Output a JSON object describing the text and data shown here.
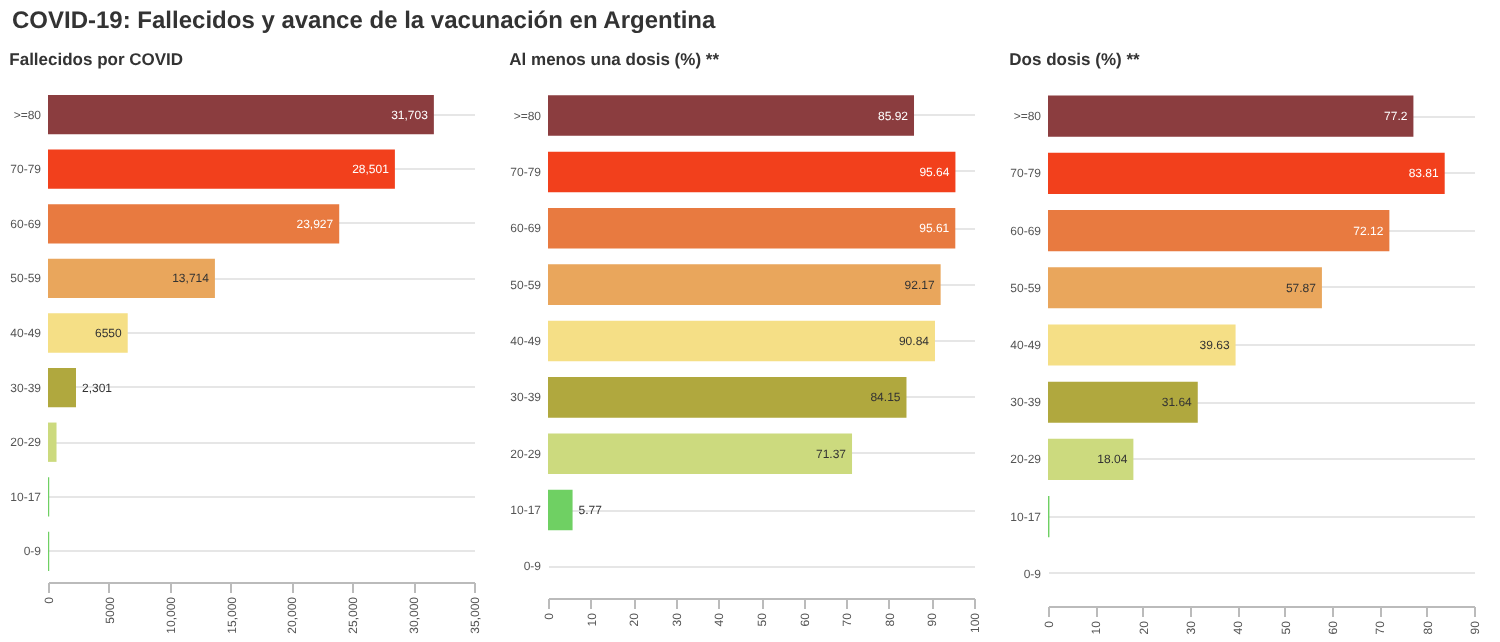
{
  "chart_data": [
    {
      "type": "bar",
      "orientation": "horizontal",
      "title": "Fallecidos por COVID",
      "annotations": [
        "COVID-19: Fallecidos y avance de la vacunación en Argentina"
      ],
      "categories": [
        ">=80",
        "70-79",
        "60-69",
        "50-59",
        "40-49",
        "30-39",
        "20-29",
        "10-17",
        "0-9"
      ],
      "values": [
        31703,
        28501,
        23927,
        13714,
        6550,
        2301,
        700,
        100,
        100
      ],
      "value_labels": [
        "31,703",
        "28,501",
        "23,927",
        "13,714",
        "6550",
        "2,301",
        null,
        null,
        null
      ],
      "colors": [
        "#8b3d3f",
        "#f2401c",
        "#e87a40",
        "#e9a65c",
        "#f5df86",
        "#b0a83e",
        "#ccda7e",
        "#6fd063",
        "#6fd063"
      ],
      "xlim": [
        0,
        35000
      ],
      "xticks": [
        0,
        5000,
        {
          "value": 10000,
          "label": "10,000"
        },
        {
          "value": 15000,
          "label": "15,000"
        },
        {
          "value": 20000,
          "label": "20,000"
        },
        {
          "value": 25000,
          "label": "25,000"
        },
        {
          "value": 30000,
          "label": "30,000"
        },
        {
          "value": 35000,
          "label": "35,000"
        }
      ],
      "grid": "y"
    },
    {
      "type": "bar",
      "orientation": "horizontal",
      "title": "Al menos una dosis (%) **",
      "categories": [
        ">=80",
        "70-79",
        "60-69",
        "50-59",
        "40-49",
        "30-39",
        "20-29",
        "10-17",
        "0-9"
      ],
      "values": [
        85.92,
        95.64,
        95.61,
        92.17,
        90.84,
        84.15,
        71.37,
        5.77,
        0
      ],
      "value_labels": [
        "85.92",
        "95.64",
        "95.61",
        "92.17",
        "90.84",
        "84.15",
        "71.37",
        "5.77",
        null
      ],
      "colors": [
        "#8b3d3f",
        "#f2401c",
        "#e87a40",
        "#e9a65c",
        "#f5df86",
        "#b0a83e",
        "#ccda7e",
        "#6fd063",
        "#6fd063"
      ],
      "xlim": [
        0,
        100
      ],
      "xticks": [
        0,
        10,
        20,
        30,
        40,
        50,
        60,
        70,
        80,
        90,
        100
      ],
      "grid": "y"
    },
    {
      "type": "bar",
      "orientation": "horizontal",
      "title": "Dos dosis (%) **",
      "categories": [
        ">=80",
        "70-79",
        "60-69",
        "50-59",
        "40-49",
        "30-39",
        "20-29",
        "10-17",
        "0-9"
      ],
      "values": [
        77.2,
        83.81,
        72.12,
        57.87,
        39.63,
        31.64,
        18.04,
        0.3,
        0
      ],
      "value_labels": [
        "77.2",
        "83.81",
        "72.12",
        "57.87",
        "39.63",
        "31.64",
        "18.04",
        null,
        null
      ],
      "colors": [
        "#8b3d3f",
        "#f2401c",
        "#e87a40",
        "#e9a65c",
        "#f5df86",
        "#b0a83e",
        "#ccda7e",
        "#6fd063",
        "#6fd063"
      ],
      "xlim": [
        0,
        90
      ],
      "xticks": [
        0,
        10,
        20,
        30,
        40,
        50,
        60,
        70,
        80,
        90
      ],
      "grid": "y"
    }
  ]
}
